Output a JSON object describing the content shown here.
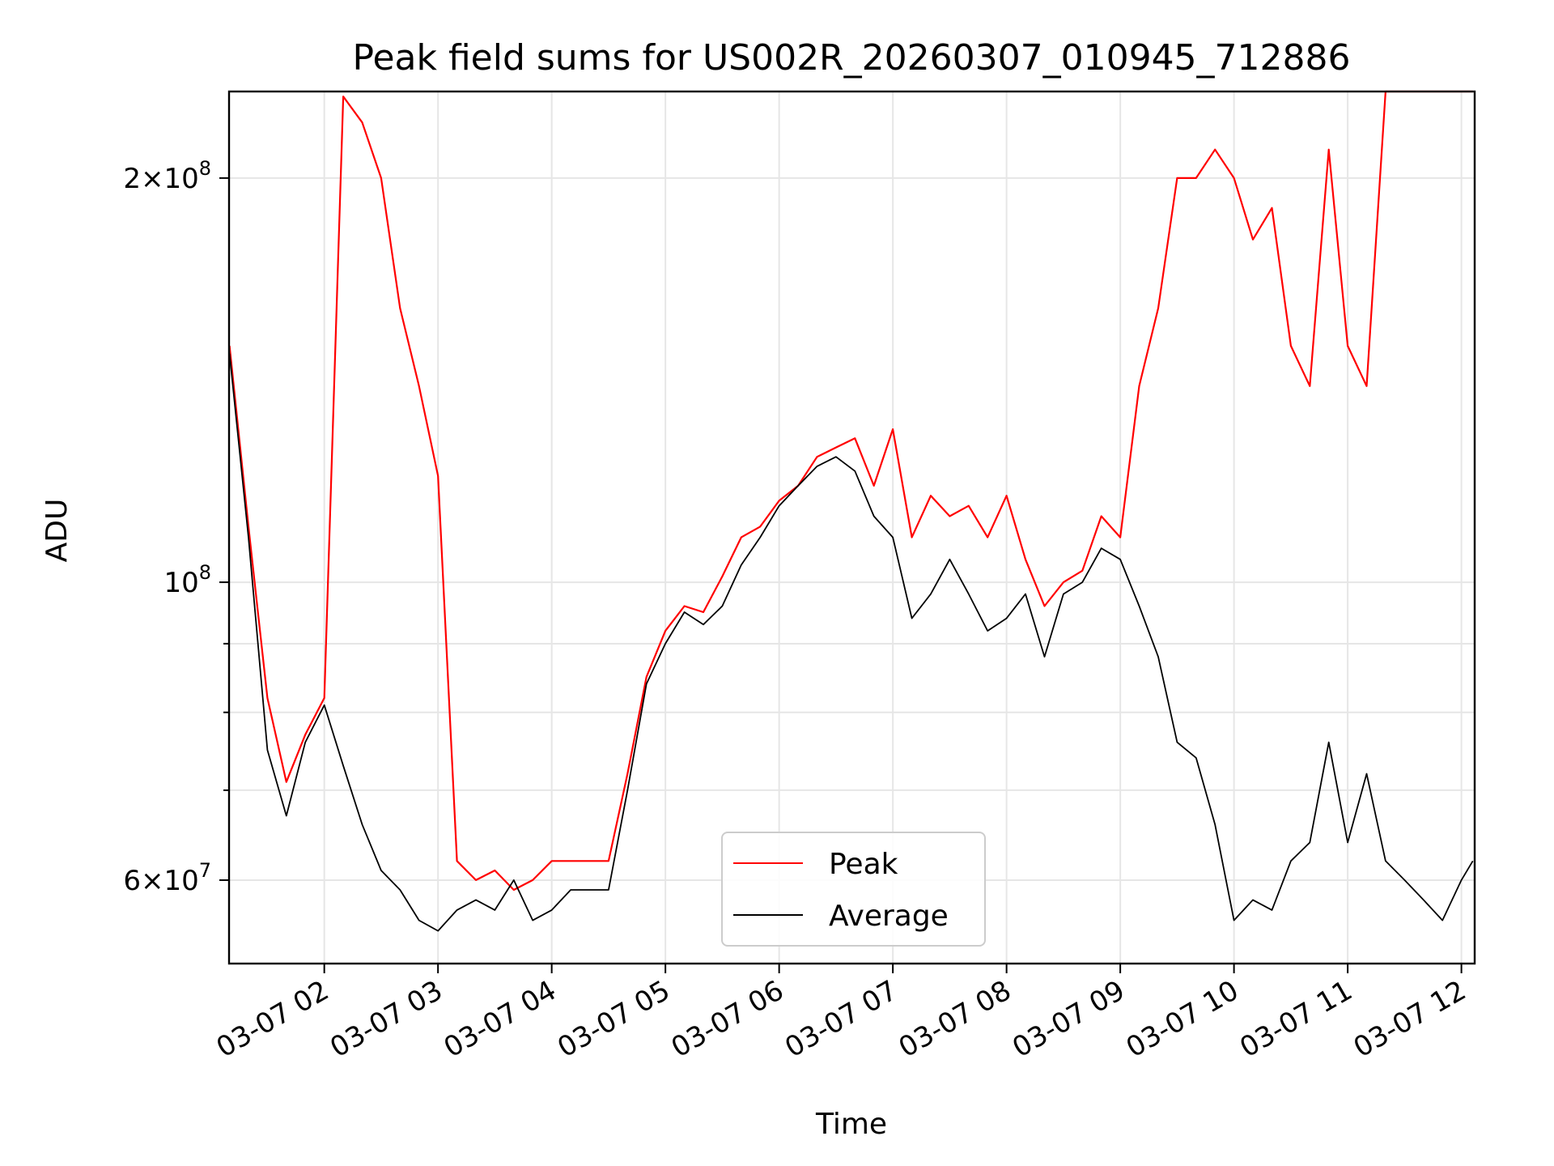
{
  "chart_data": {
    "type": "line",
    "title": "Peak field sums for US002R_20260307_010945_712886",
    "xlabel": "Time",
    "ylabel": "ADU",
    "yscale": "log",
    "ylim": [
      52000000,
      232000000
    ],
    "xlim": [
      "2026-03-07 01:09:45",
      "2026-03-07 12:07:00"
    ],
    "x_ticks": [
      {
        "t": "2026-03-07 02:00",
        "label": "03-07 02"
      },
      {
        "t": "2026-03-07 03:00",
        "label": "03-07 03"
      },
      {
        "t": "2026-03-07 04:00",
        "label": "03-07 04"
      },
      {
        "t": "2026-03-07 05:00",
        "label": "03-07 05"
      },
      {
        "t": "2026-03-07 06:00",
        "label": "03-07 06"
      },
      {
        "t": "2026-03-07 07:00",
        "label": "03-07 07"
      },
      {
        "t": "2026-03-07 08:00",
        "label": "03-07 08"
      },
      {
        "t": "2026-03-07 09:00",
        "label": "03-07 09"
      },
      {
        "t": "2026-03-07 10:00",
        "label": "03-07 10"
      },
      {
        "t": "2026-03-07 11:00",
        "label": "03-07 11"
      },
      {
        "t": "2026-03-07 12:00",
        "label": "03-07 12"
      }
    ],
    "y_ticks_major": [
      {
        "value": 60000000,
        "mantissa": "6",
        "exponent": "7"
      },
      {
        "value": 100000000,
        "mantissa": "",
        "exponent": "8"
      },
      {
        "value": 200000000,
        "mantissa": "2",
        "exponent": "8"
      }
    ],
    "y_ticks_minor": [
      70000000,
      80000000,
      90000000
    ],
    "grid": true,
    "legend": {
      "position": "lower-center"
    },
    "series": [
      {
        "name": "Peak",
        "color": "#ff0000",
        "x": [
          "2026-03-07 01:10",
          "2026-03-07 01:20",
          "2026-03-07 01:30",
          "2026-03-07 01:40",
          "2026-03-07 01:50",
          "2026-03-07 02:00",
          "2026-03-07 02:10",
          "2026-03-07 02:20",
          "2026-03-07 02:30",
          "2026-03-07 02:40",
          "2026-03-07 02:50",
          "2026-03-07 03:00",
          "2026-03-07 03:10",
          "2026-03-07 03:20",
          "2026-03-07 03:30",
          "2026-03-07 03:40",
          "2026-03-07 03:50",
          "2026-03-07 04:00",
          "2026-03-07 04:10",
          "2026-03-07 04:20",
          "2026-03-07 04:30",
          "2026-03-07 04:40",
          "2026-03-07 04:50",
          "2026-03-07 05:00",
          "2026-03-07 05:10",
          "2026-03-07 05:20",
          "2026-03-07 05:30",
          "2026-03-07 05:40",
          "2026-03-07 05:50",
          "2026-03-07 06:00",
          "2026-03-07 06:10",
          "2026-03-07 06:20",
          "2026-03-07 06:30",
          "2026-03-07 06:40",
          "2026-03-07 06:50",
          "2026-03-07 07:00",
          "2026-03-07 07:10",
          "2026-03-07 07:20",
          "2026-03-07 07:30",
          "2026-03-07 07:40",
          "2026-03-07 07:50",
          "2026-03-07 08:00",
          "2026-03-07 08:10",
          "2026-03-07 08:20",
          "2026-03-07 08:30",
          "2026-03-07 08:40",
          "2026-03-07 08:50",
          "2026-03-07 09:00",
          "2026-03-07 09:10",
          "2026-03-07 09:20",
          "2026-03-07 09:30",
          "2026-03-07 09:40",
          "2026-03-07 09:50",
          "2026-03-07 10:00",
          "2026-03-07 10:10",
          "2026-03-07 10:20",
          "2026-03-07 10:30",
          "2026-03-07 10:40",
          "2026-03-07 10:50",
          "2026-03-07 11:00",
          "2026-03-07 11:10",
          "2026-03-07 11:20",
          "2026-03-07 11:30",
          "2026-03-07 11:40",
          "2026-03-07 11:50",
          "2026-03-07 12:00",
          "2026-03-07 12:06"
        ],
        "y": [
          150000000,
          110000000,
          82000000,
          71000000,
          77000000,
          82000000,
          230000000,
          220000000,
          200000000,
          160000000,
          140000000,
          120000000,
          62000000,
          60000000,
          61000000,
          59000000,
          60000000,
          62000000,
          62000000,
          62000000,
          62000000,
          72000000,
          85000000,
          92000000,
          96000000,
          95000000,
          101000000,
          108000000,
          110000000,
          115000000,
          118000000,
          124000000,
          126000000,
          128000000,
          118000000,
          130000000,
          108000000,
          116000000,
          112000000,
          114000000,
          108000000,
          116000000,
          104000000,
          96000000,
          100000000,
          102000000,
          112000000,
          108000000,
          140000000,
          160000000,
          200000000,
          200000000,
          210000000,
          200000000,
          180000000,
          190000000,
          150000000,
          140000000,
          210000000,
          150000000,
          140000000,
          232000000,
          232000000,
          232000000,
          232000000,
          232000000,
          232000000
        ]
      },
      {
        "name": "Average",
        "color": "#000000",
        "x": [
          "2026-03-07 01:10",
          "2026-03-07 01:20",
          "2026-03-07 01:30",
          "2026-03-07 01:40",
          "2026-03-07 01:50",
          "2026-03-07 02:00",
          "2026-03-07 02:10",
          "2026-03-07 02:20",
          "2026-03-07 02:30",
          "2026-03-07 02:40",
          "2026-03-07 02:50",
          "2026-03-07 03:00",
          "2026-03-07 03:10",
          "2026-03-07 03:20",
          "2026-03-07 03:30",
          "2026-03-07 03:40",
          "2026-03-07 03:50",
          "2026-03-07 04:00",
          "2026-03-07 04:10",
          "2026-03-07 04:20",
          "2026-03-07 04:30",
          "2026-03-07 04:40",
          "2026-03-07 04:50",
          "2026-03-07 05:00",
          "2026-03-07 05:10",
          "2026-03-07 05:20",
          "2026-03-07 05:30",
          "2026-03-07 05:40",
          "2026-03-07 05:50",
          "2026-03-07 06:00",
          "2026-03-07 06:10",
          "2026-03-07 06:20",
          "2026-03-07 06:30",
          "2026-03-07 06:40",
          "2026-03-07 06:50",
          "2026-03-07 07:00",
          "2026-03-07 07:10",
          "2026-03-07 07:20",
          "2026-03-07 07:30",
          "2026-03-07 07:40",
          "2026-03-07 07:50",
          "2026-03-07 08:00",
          "2026-03-07 08:10",
          "2026-03-07 08:20",
          "2026-03-07 08:30",
          "2026-03-07 08:40",
          "2026-03-07 08:50",
          "2026-03-07 09:00",
          "2026-03-07 09:10",
          "2026-03-07 09:20",
          "2026-03-07 09:30",
          "2026-03-07 09:40",
          "2026-03-07 09:50",
          "2026-03-07 10:00",
          "2026-03-07 10:10",
          "2026-03-07 10:20",
          "2026-03-07 10:30",
          "2026-03-07 10:40",
          "2026-03-07 10:50",
          "2026-03-07 11:00",
          "2026-03-07 11:10",
          "2026-03-07 11:20",
          "2026-03-07 11:30",
          "2026-03-07 11:40",
          "2026-03-07 11:50",
          "2026-03-07 12:00",
          "2026-03-07 12:06"
        ],
        "y": [
          148000000,
          108000000,
          75000000,
          67000000,
          76000000,
          81000000,
          73000000,
          66000000,
          61000000,
          59000000,
          56000000,
          55000000,
          57000000,
          58000000,
          57000000,
          60000000,
          56000000,
          57000000,
          59000000,
          59000000,
          59000000,
          70000000,
          84000000,
          90000000,
          95000000,
          93000000,
          96000000,
          103000000,
          108000000,
          114000000,
          118000000,
          122000000,
          124000000,
          121000000,
          112000000,
          108000000,
          94000000,
          98000000,
          104000000,
          98000000,
          92000000,
          94000000,
          98000000,
          88000000,
          98000000,
          100000000,
          106000000,
          104000000,
          96000000,
          88000000,
          76000000,
          74000000,
          66000000,
          56000000,
          58000000,
          57000000,
          62000000,
          64000000,
          76000000,
          64000000,
          72000000,
          62000000,
          60000000,
          58000000,
          56000000,
          60000000,
          62000000
        ]
      }
    ]
  }
}
